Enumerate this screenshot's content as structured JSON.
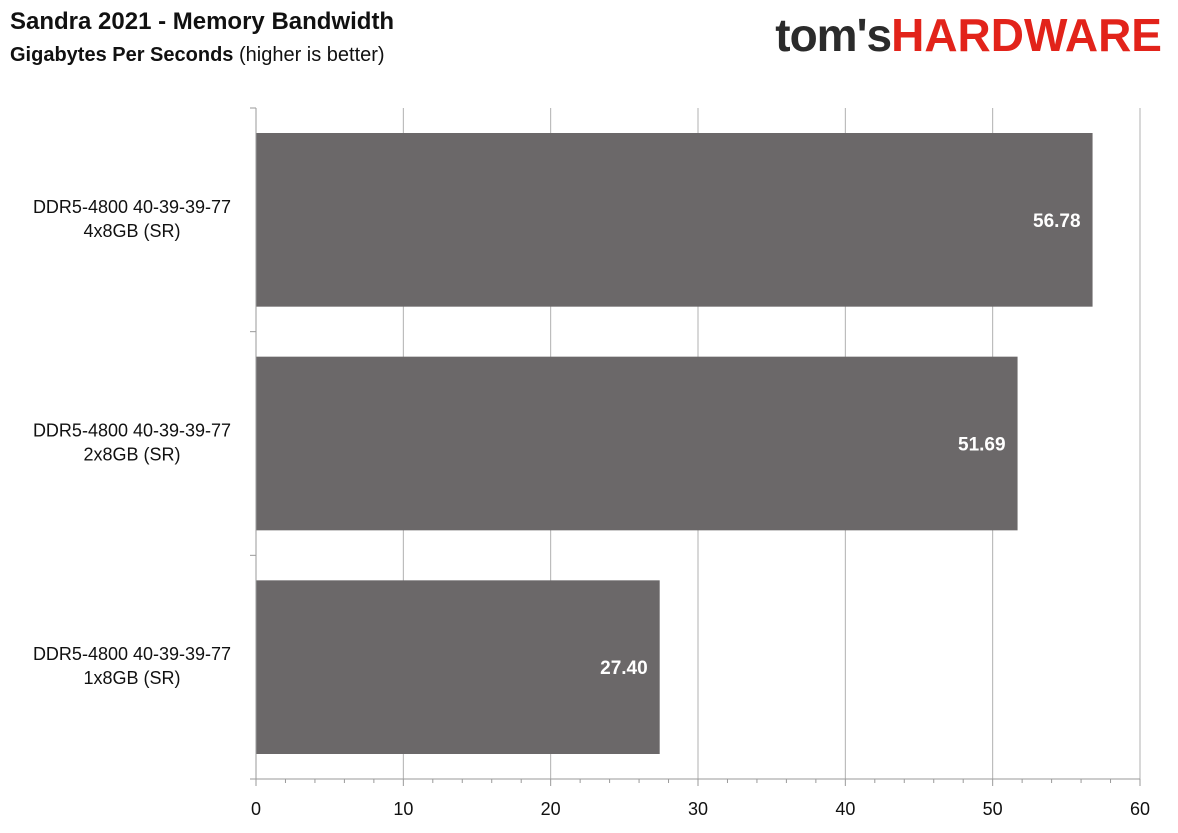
{
  "header": {
    "title": "Sandra 2021 - Memory Bandwidth",
    "subtitle_bold": "Gigabytes Per Seconds",
    "subtitle_rest": " (higher is better)"
  },
  "logo": {
    "part_a": "tom's",
    "part_b": "HARDWARE",
    "color_a": "#2b2b2b",
    "color_b": "#e2231a"
  },
  "chart_data": {
    "type": "bar",
    "orientation": "horizontal",
    "title": "Sandra 2021 - Memory Bandwidth",
    "subtitle": "Gigabytes Per Seconds (higher is better)",
    "categories": [
      [
        "DDR5-4800 40-39-39-77",
        "4x8GB (SR)"
      ],
      [
        "DDR5-4800 40-39-39-77",
        "2x8GB (SR)"
      ],
      [
        "DDR5-4800 40-39-39-77",
        "1x8GB (SR)"
      ]
    ],
    "values": [
      56.78,
      51.69,
      27.4
    ],
    "value_labels": [
      "56.78",
      "51.69",
      "27.40"
    ],
    "xlim": [
      0,
      60
    ],
    "x_ticks": [
      0,
      10,
      20,
      30,
      40,
      50,
      60
    ],
    "minor_ticks_per_major": 5,
    "grid": true,
    "bar_color": "#6b6869",
    "grid_color": "#b0b0b0",
    "axis_color": "#9a9a9a"
  }
}
